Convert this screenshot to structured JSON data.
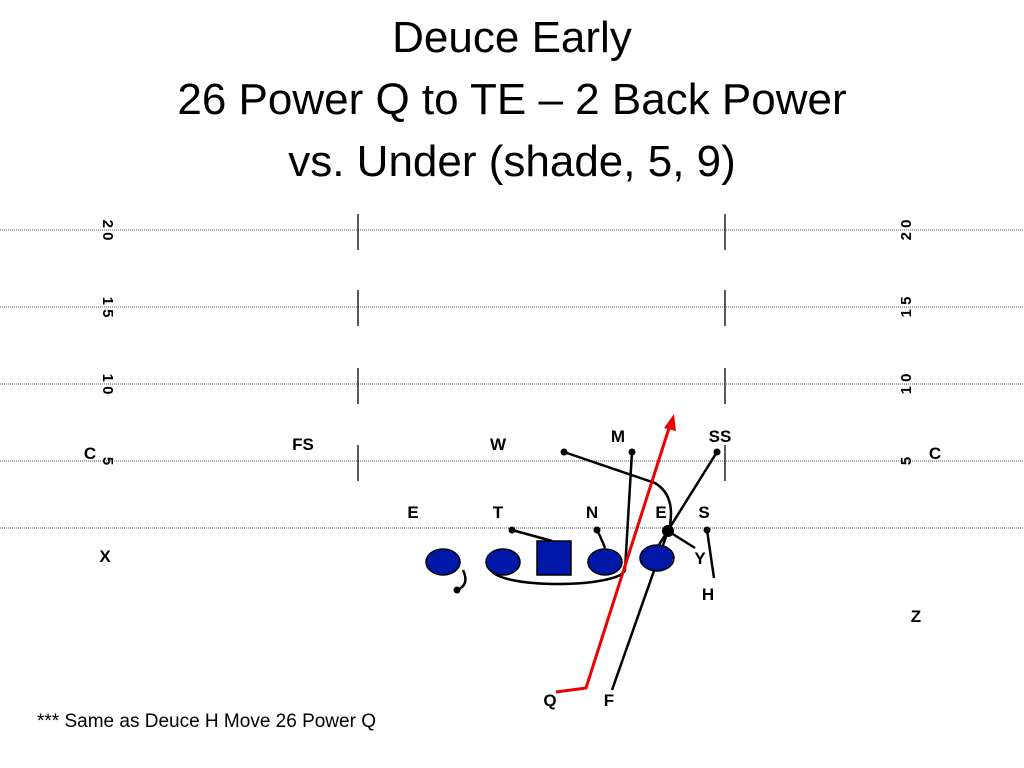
{
  "title": [
    "Deuce Early",
    "26 Power Q to TE – 2 Back Power",
    "vs.  Under (shade, 5, 9)"
  ],
  "yard_numbers": {
    "left": [
      "2 0",
      "1 5",
      "1 0",
      "5"
    ],
    "right": [
      "2 0",
      "1 5",
      "1 0",
      "5"
    ]
  },
  "defense": [
    "C",
    "FS",
    "W",
    "M",
    "SS",
    "C",
    "E",
    "T",
    "N",
    "E",
    "S"
  ],
  "offense": [
    "X",
    "Y",
    "H",
    "Z",
    "Q",
    "F"
  ],
  "note": "*** Same as Deuce H Move 26 Power Q"
}
